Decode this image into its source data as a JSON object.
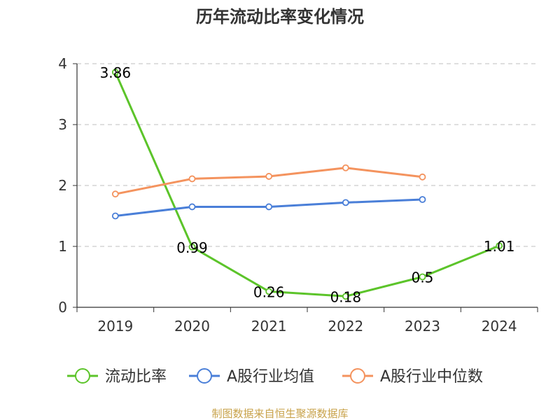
{
  "chart_data": {
    "type": "line",
    "title": "历年流动比率变化情况",
    "categories": [
      "2019",
      "2020",
      "2021",
      "2022",
      "2023",
      "2024"
    ],
    "ylim": [
      0,
      4
    ],
    "yticks": [
      "0",
      "1",
      "2",
      "3",
      "4"
    ],
    "grid": true,
    "legend_position": "bottom",
    "series": [
      {
        "name": "流动比率",
        "color": "#5cc42a",
        "values": [
          3.86,
          0.99,
          0.26,
          0.18,
          0.5,
          1.01
        ],
        "labels": [
          "3.86",
          "0.99",
          "0.26",
          "0.18",
          "0.5",
          "1.01"
        ]
      },
      {
        "name": "A股行业均值",
        "color": "#4a7fd8",
        "values": [
          1.5,
          1.65,
          1.65,
          1.72,
          1.77,
          null
        ]
      },
      {
        "name": "A股行业中位数",
        "color": "#f4935e",
        "values": [
          1.86,
          2.11,
          2.15,
          2.29,
          2.14,
          null
        ]
      }
    ]
  },
  "source_text": "制图数据来自恒生聚源数据库"
}
